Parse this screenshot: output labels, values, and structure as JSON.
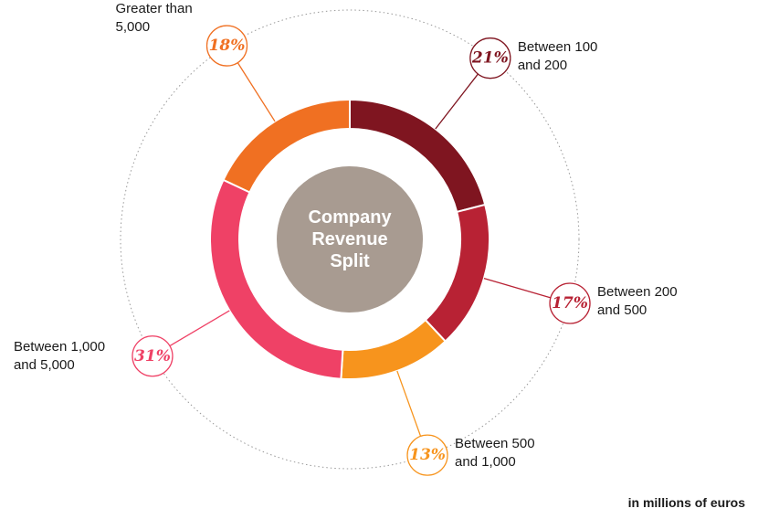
{
  "chart_data": {
    "type": "donut",
    "title": "Company Revenue Split",
    "categories": [
      "Between 100 and 200",
      "Between 200 and 500",
      "Between 500 and 1,000",
      "Between 1,000 and 5,000",
      "Greater than 5,000"
    ],
    "values": [
      21,
      17,
      13,
      31,
      18
    ],
    "value_labels": [
      "21%",
      "17%",
      "13%",
      "31%",
      "18%"
    ],
    "colors": [
      "#7f1520",
      "#b82234",
      "#f7941d",
      "#ef4166",
      "#f07022"
    ],
    "note": "in millions of euros"
  }
}
